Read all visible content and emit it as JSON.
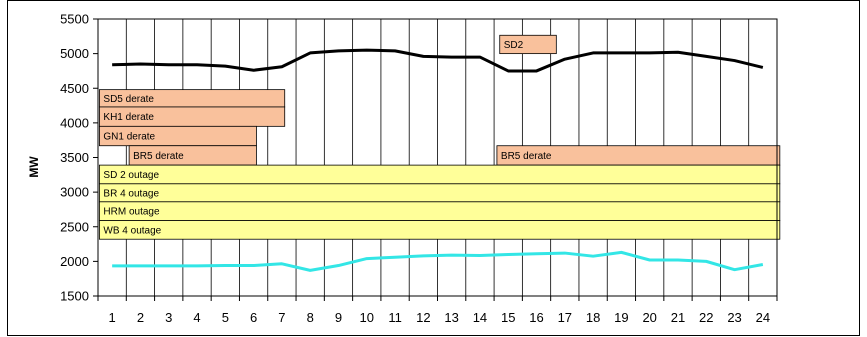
{
  "chart_data": {
    "type": "line",
    "title": "",
    "xlabel": "",
    "ylabel": "MW",
    "x": [
      1,
      2,
      3,
      4,
      5,
      6,
      7,
      8,
      9,
      10,
      11,
      12,
      13,
      14,
      15,
      16,
      17,
      18,
      19,
      20,
      21,
      22,
      23,
      24
    ],
    "ylim": [
      1500,
      5500
    ],
    "yticks": [
      1500,
      2000,
      2500,
      3000,
      3500,
      4000,
      4500,
      5000,
      5500
    ],
    "grid": "vertical",
    "legend": "none",
    "series": [
      {
        "color": "#000000",
        "values": [
          4840,
          4850,
          4840,
          4840,
          4820,
          4760,
          4810,
          5010,
          5040,
          5050,
          5040,
          4960,
          4950,
          4950,
          4750,
          4750,
          4920,
          5010,
          5010,
          5010,
          5020,
          4960,
          4900,
          4800
        ]
      },
      {
        "color": "#33e6e6",
        "values": [
          1935,
          1935,
          1935,
          1935,
          1940,
          1940,
          1965,
          1870,
          1940,
          2040,
          2060,
          2080,
          2090,
          2085,
          2100,
          2110,
          2120,
          2075,
          2130,
          2020,
          2020,
          2000,
          1880,
          1955
        ]
      }
    ],
    "outage_bars": [
      {
        "label": "SD2",
        "x0": 14.7,
        "x1": 16.7,
        "y_top": 5265,
        "y_bottom": 5000,
        "color": "#f9c19c"
      },
      {
        "label": "SD5 derate",
        "x0": 0.55,
        "x1": 7.1,
        "y_top": 4480,
        "y_bottom": 4230,
        "color": "#f9c19c"
      },
      {
        "label": "KH1 derate",
        "x0": 0.55,
        "x1": 7.1,
        "y_top": 4230,
        "y_bottom": 3950,
        "color": "#f9c19c"
      },
      {
        "label": "GN1 derate",
        "x0": 0.55,
        "x1": 6.1,
        "y_top": 3950,
        "y_bottom": 3670,
        "color": "#f9c19c"
      },
      {
        "label": "BR5 derate",
        "x0": 1.6,
        "x1": 6.1,
        "y_top": 3670,
        "y_bottom": 3390,
        "color": "#f9c19c"
      },
      {
        "label": "BR5 derate",
        "x0": 14.6,
        "x1": 24.6,
        "y_top": 3670,
        "y_bottom": 3390,
        "color": "#f9c19c"
      },
      {
        "label": "SD 2 outage",
        "x0": 0.55,
        "x1": 24.6,
        "y_top": 3390,
        "y_bottom": 3120,
        "color": "#ffff99"
      },
      {
        "label": "BR 4 outage",
        "x0": 0.55,
        "x1": 24.6,
        "y_top": 3120,
        "y_bottom": 2860,
        "color": "#ffff99"
      },
      {
        "label": "HRM outage",
        "x0": 0.55,
        "x1": 24.6,
        "y_top": 2860,
        "y_bottom": 2590,
        "color": "#ffff99"
      },
      {
        "label": "WB 4 outage",
        "x0": 0.55,
        "x1": 24.6,
        "y_top": 2590,
        "y_bottom": 2320,
        "color": "#ffff99"
      }
    ]
  }
}
